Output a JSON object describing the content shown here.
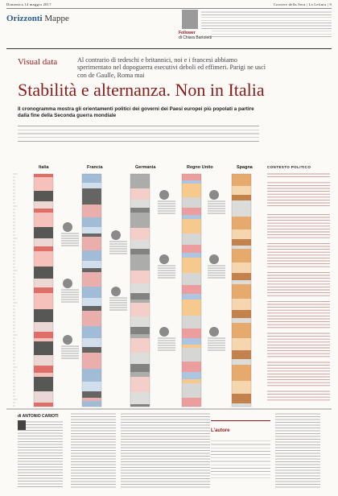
{
  "header": {
    "date": "Domenica 14 maggio 2017",
    "masthead": "Corriere della Sera | La Lettura | 9"
  },
  "section": {
    "name": "Orizzonti",
    "sub": "Mappe"
  },
  "follower": {
    "label": "Follower",
    "by": "di Chiara Bartoletti"
  },
  "article": {
    "kicker": "Visual data",
    "deck": "Al contrario di tedeschi e britannici, noi e i francesi abbiamo sperimentato nel dopoguerra esecutivi deboli ed effimeri. Parigi ne uscì con de Gaulle, Roma mai",
    "title": "Stabilità e alternanza. Non in Italia",
    "subtitle": "Il cronogramma mostra gli orientamenti politici dei governi dei Paesi europei più popolati a partire dalla fine della Seconda guerra mondiale",
    "countries": [
      "Italia",
      "Francia",
      "Germania",
      "Regno Unito",
      "Spagna"
    ],
    "context_title": "CONTESTO POLITICO",
    "byline": "di ANTONIO CARIOTI",
    "author_box": "L'autore"
  }
}
